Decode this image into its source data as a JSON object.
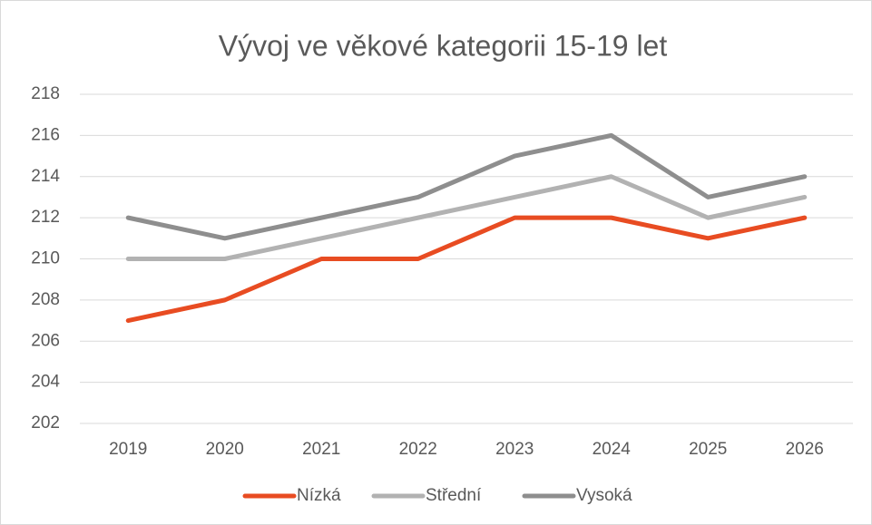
{
  "chart_data": {
    "type": "line",
    "title": "Vývoj ve věkové kategorii 15-19 let",
    "categories": [
      "2019",
      "2020",
      "2021",
      "2022",
      "2023",
      "2024",
      "2025",
      "2026"
    ],
    "series": [
      {
        "name": "Nízká",
        "color": "#e84c22",
        "values": [
          207,
          208,
          210,
          210,
          212,
          212,
          211,
          212
        ]
      },
      {
        "name": "Střední",
        "color": "#b2b2b2",
        "values": [
          210,
          210,
          211,
          212,
          213,
          214,
          212,
          213
        ]
      },
      {
        "name": "Vysoká",
        "color": "#8e8e8e",
        "values": [
          212,
          211,
          212,
          213,
          215,
          216,
          213,
          214
        ]
      }
    ],
    "ylim": [
      202,
      218
    ],
    "yticks": [
      202,
      204,
      206,
      208,
      210,
      212,
      214,
      216,
      218
    ],
    "grid": true,
    "legend": "bottom"
  }
}
